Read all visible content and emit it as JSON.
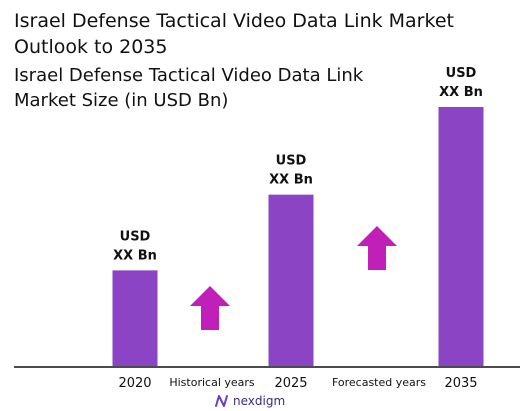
{
  "title": "Israel Defense Tactical Video Data Link Market Outlook to 2035",
  "chart_data": {
    "type": "bar",
    "title": "Israel Defense Tactical Video Data Link Market Size (in USD Bn)",
    "categories": [
      "2020",
      "2025",
      "2035"
    ],
    "values": [
      0.48,
      0.86,
      1.3
    ],
    "value_labels": [
      [
        "USD",
        "XX Bn"
      ],
      [
        "USD",
        "XX Bn"
      ],
      [
        "USD",
        "XX Bn"
      ]
    ],
    "ylim": [
      0,
      1.3
    ],
    "xlabel": "",
    "ylabel": "",
    "grid": false,
    "period_labels": [
      "Historical years",
      "Forecasted years"
    ],
    "bar_color": "#8a44c4",
    "arrow_color": "#c020b8"
  },
  "logo": {
    "text": "nexdigm"
  }
}
